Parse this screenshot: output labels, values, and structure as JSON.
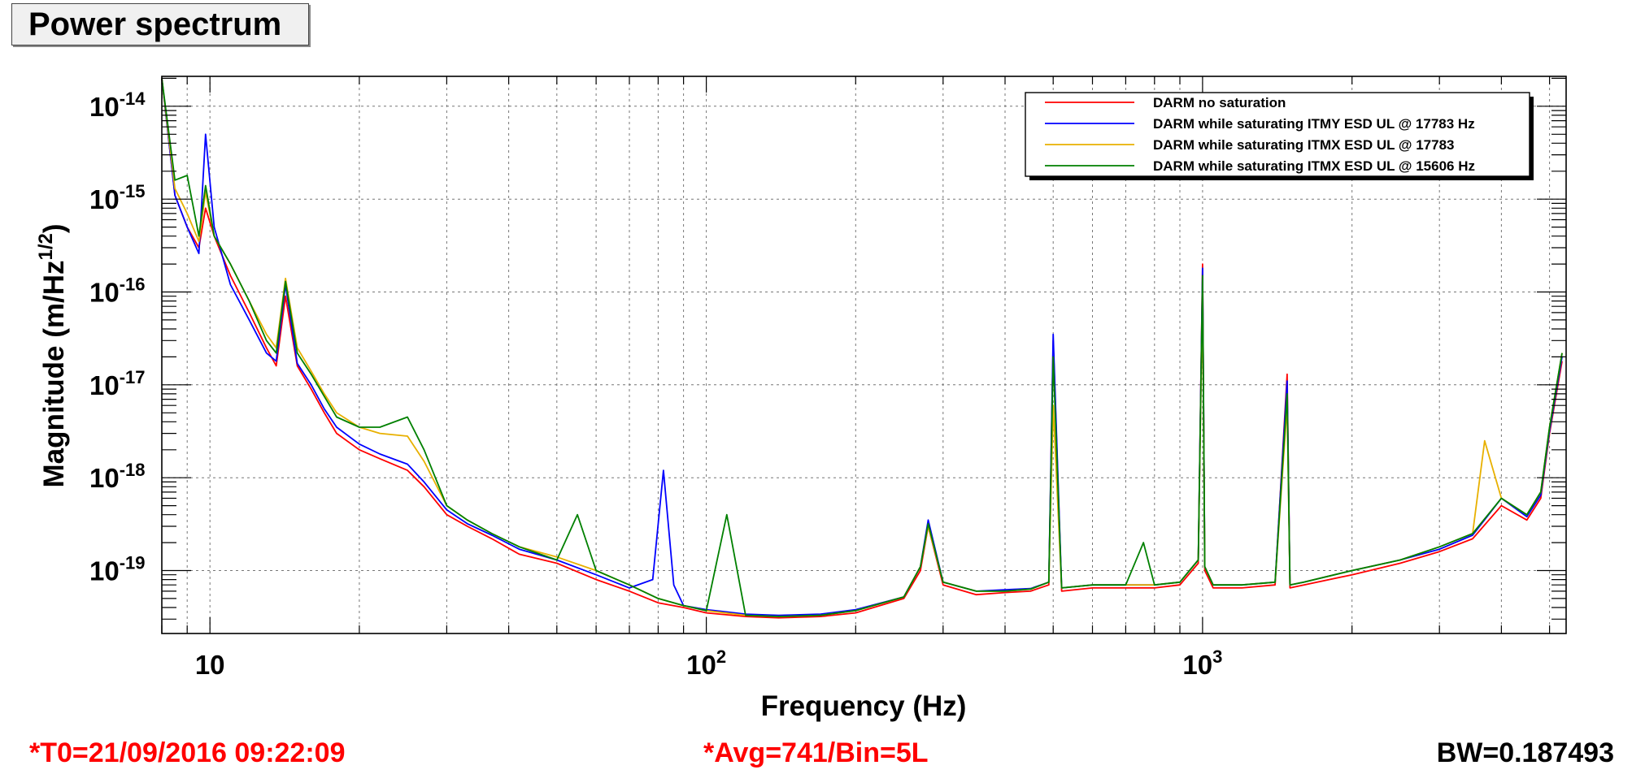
{
  "title": "Power spectrum",
  "footer": {
    "t0": "*T0=21/09/2016 09:22:09",
    "avg": "*Avg=741/Bin=5L",
    "bw": "BW=0.187493",
    "star_color": "#ff0000"
  },
  "chart_data": {
    "type": "line",
    "title": "Power spectrum",
    "xlabel": "Frequency (Hz)",
    "ylabel_main": "Magnitude (m/Hz",
    "ylabel_sup": "1/2",
    "ylabel_close": ")",
    "xscale": "log",
    "yscale": "log",
    "xlim": [
      8,
      5400
    ],
    "ylim": [
      2.1e-20,
      2.1e-14
    ],
    "grid": true,
    "legend_position": "top-right",
    "x_ticks": [
      {
        "value": 10,
        "base": "10",
        "exp": ""
      },
      {
        "value": 100,
        "base": "10",
        "exp": "2"
      },
      {
        "value": 1000,
        "base": "10",
        "exp": "3"
      }
    ],
    "y_ticks": [
      {
        "value": 1e-14,
        "base": "10",
        "exp": "-14"
      },
      {
        "value": 1e-15,
        "base": "10",
        "exp": "-15"
      },
      {
        "value": 1e-16,
        "base": "10",
        "exp": "-16"
      },
      {
        "value": 1e-17,
        "base": "10",
        "exp": "-17"
      },
      {
        "value": 1e-18,
        "base": "10",
        "exp": "-18"
      },
      {
        "value": 1e-19,
        "base": "10",
        "exp": "-19"
      }
    ],
    "series": [
      {
        "name": "DARM no saturation",
        "color": "#ff0000",
        "x": [
          8,
          8.5,
          9,
          9.5,
          9.8,
          10.2,
          11,
          12,
          13,
          13.6,
          14.2,
          15,
          16,
          17,
          18,
          20,
          22,
          25,
          27,
          30,
          33,
          37,
          42,
          50,
          60,
          70,
          80,
          90,
          100,
          120,
          140,
          170,
          200,
          250,
          270,
          280,
          300,
          350,
          400,
          450,
          490,
          500,
          520,
          600,
          700,
          800,
          900,
          980,
          1000,
          1010,
          1050,
          1100,
          1200,
          1400,
          1480,
          1500,
          1600,
          2000,
          2500,
          3000,
          3500,
          4000,
          4500,
          4800,
          5000,
          5300
        ],
        "y": [
          2e-14,
          1.1e-15,
          5e-16,
          3e-16,
          8e-16,
          4e-16,
          1.5e-16,
          6e-17,
          2.5e-17,
          1.6e-17,
          9e-17,
          1.6e-17,
          9e-18,
          5e-18,
          3e-18,
          2e-18,
          1.6e-18,
          1.2e-18,
          8e-19,
          4e-19,
          3e-19,
          2.2e-19,
          1.5e-19,
          1.2e-19,
          8e-20,
          6e-20,
          4.5e-20,
          4e-20,
          3.5e-20,
          3.2e-20,
          3.1e-20,
          3.2e-20,
          3.5e-20,
          5e-20,
          1e-19,
          3e-19,
          7e-20,
          5.5e-20,
          5.8e-20,
          6e-20,
          7e-20,
          3e-17,
          6e-20,
          6.5e-20,
          6.5e-20,
          6.5e-20,
          7e-20,
          1.2e-19,
          2e-16,
          1e-19,
          6.5e-20,
          6.5e-20,
          6.5e-20,
          7e-20,
          1.3e-17,
          6.5e-20,
          7e-20,
          9e-20,
          1.2e-19,
          1.6e-19,
          2.2e-19,
          5e-19,
          3.5e-19,
          6e-19,
          3e-18,
          1.8e-17
        ]
      },
      {
        "name": "DARM while saturating ITMY ESD UL @ 17783 Hz",
        "color": "#0000ff",
        "x": [
          8,
          8.5,
          9,
          9.5,
          9.8,
          10.2,
          11,
          12,
          13,
          13.6,
          14.2,
          15,
          16,
          17,
          18,
          20,
          22,
          25,
          27,
          30,
          33,
          37,
          42,
          50,
          60,
          70,
          78,
          82,
          86,
          90,
          100,
          120,
          140,
          170,
          200,
          250,
          270,
          280,
          300,
          350,
          400,
          450,
          490,
          500,
          520,
          600,
          700,
          800,
          900,
          980,
          1000,
          1010,
          1050,
          1100,
          1200,
          1400,
          1480,
          1500,
          1600,
          2000,
          2500,
          3000,
          3500,
          4000,
          4500,
          4800,
          5000,
          5300
        ],
        "y": [
          2e-14,
          1.1e-15,
          5e-16,
          2.6e-16,
          5e-15,
          5e-16,
          1.2e-16,
          5e-17,
          2.2e-17,
          1.8e-17,
          1.2e-16,
          1.7e-17,
          1e-17,
          5.5e-18,
          3.5e-18,
          2.3e-18,
          1.8e-18,
          1.4e-18,
          9e-19,
          4.5e-19,
          3.2e-19,
          2.4e-19,
          1.7e-19,
          1.3e-19,
          9e-20,
          6.5e-20,
          8e-20,
          1.2e-18,
          7e-20,
          4.2e-20,
          3.8e-20,
          3.4e-20,
          3.3e-20,
          3.4e-20,
          3.8e-20,
          5.2e-20,
          1.1e-19,
          3.5e-19,
          7.5e-20,
          6e-20,
          6.2e-20,
          6.4e-20,
          7.5e-20,
          3.5e-17,
          6.5e-20,
          7e-20,
          7e-20,
          7e-20,
          7.5e-20,
          1.3e-19,
          1.8e-16,
          1.1e-19,
          7e-20,
          7e-20,
          7e-20,
          7.5e-20,
          1.1e-17,
          7e-20,
          7.5e-20,
          1e-19,
          1.3e-19,
          1.7e-19,
          2.4e-19,
          6e-19,
          3.8e-19,
          6.5e-19,
          3.2e-18,
          2e-17
        ]
      },
      {
        "name": "DARM while saturating ITMX ESD UL @ 17783",
        "color": "#e8b000",
        "x": [
          8,
          8.5,
          9,
          9.5,
          9.8,
          10.2,
          11,
          12,
          13,
          13.6,
          14.2,
          15,
          16,
          17,
          18,
          20,
          22,
          25,
          27,
          30,
          33,
          37,
          42,
          50,
          60,
          70,
          80,
          90,
          100,
          120,
          140,
          170,
          200,
          250,
          270,
          280,
          300,
          350,
          400,
          450,
          490,
          500,
          520,
          600,
          700,
          800,
          900,
          980,
          1000,
          1010,
          1050,
          1100,
          1200,
          1400,
          1480,
          1500,
          1600,
          2000,
          2500,
          3000,
          3500,
          3700,
          4000,
          4500,
          4800,
          5000,
          5300
        ],
        "y": [
          2e-14,
          1.3e-15,
          7e-16,
          3.5e-16,
          1.2e-15,
          4e-16,
          2e-16,
          8e-17,
          3.5e-17,
          2.5e-17,
          1.4e-16,
          2.5e-17,
          1.4e-17,
          8e-18,
          5e-18,
          3.5e-18,
          3e-18,
          2.8e-18,
          1.5e-18,
          5e-19,
          3.5e-19,
          2.5e-19,
          1.8e-19,
          1.4e-19,
          1e-19,
          7e-20,
          5e-20,
          4.2e-20,
          3.7e-20,
          3.3e-20,
          3.2e-20,
          3.3e-20,
          3.7e-20,
          5.2e-20,
          1.1e-19,
          3e-19,
          7.5e-20,
          6e-20,
          6e-20,
          6.3e-20,
          7.5e-20,
          6e-18,
          6.5e-20,
          7e-20,
          7e-20,
          7e-20,
          7.5e-20,
          1.3e-19,
          1e-16,
          1.1e-19,
          7e-20,
          7e-20,
          7e-20,
          7.5e-20,
          6e-18,
          7e-20,
          7.5e-20,
          1e-19,
          1.3e-19,
          1.8e-19,
          2.5e-19,
          2.5e-18,
          6e-19,
          4e-19,
          7e-19,
          3.5e-18,
          2.2e-17
        ]
      },
      {
        "name": "DARM while saturating ITMX ESD UL @ 15606 Hz",
        "color": "#008000",
        "x": [
          8,
          8.5,
          9,
          9.5,
          9.8,
          10.2,
          11,
          12,
          13,
          13.6,
          14.2,
          15,
          16,
          17,
          18,
          20,
          22,
          25,
          27,
          30,
          33,
          37,
          42,
          50,
          55,
          60,
          70,
          80,
          90,
          100,
          110,
          120,
          140,
          170,
          200,
          250,
          270,
          280,
          300,
          350,
          400,
          450,
          490,
          500,
          520,
          600,
          700,
          760,
          800,
          900,
          980,
          1000,
          1010,
          1050,
          1100,
          1200,
          1400,
          1480,
          1500,
          1600,
          2000,
          2500,
          3000,
          3500,
          4000,
          4500,
          4800,
          5000,
          5300
        ],
        "y": [
          2e-14,
          1.6e-15,
          1.8e-15,
          4e-16,
          1.4e-15,
          4e-16,
          2e-16,
          8e-17,
          3e-17,
          2.2e-17,
          1.3e-16,
          2.2e-17,
          1.3e-17,
          7.5e-18,
          4.5e-18,
          3.5e-18,
          3.5e-18,
          4.5e-18,
          2e-18,
          5e-19,
          3.5e-19,
          2.5e-19,
          1.8e-19,
          1.3e-19,
          4e-19,
          1e-19,
          7e-20,
          5e-20,
          4.2e-20,
          3.7e-20,
          4e-19,
          3.3e-20,
          3.2e-20,
          3.3e-20,
          3.7e-20,
          5.2e-20,
          1.1e-19,
          3.2e-19,
          7.5e-20,
          6e-20,
          6e-20,
          6.3e-20,
          7.5e-20,
          2e-17,
          6.5e-20,
          7e-20,
          7e-20,
          2e-19,
          7e-20,
          7.5e-20,
          1.3e-19,
          1.5e-16,
          1.1e-19,
          7e-20,
          7e-20,
          7e-20,
          7.5e-20,
          8e-18,
          7e-20,
          7.5e-20,
          1e-19,
          1.3e-19,
          1.8e-19,
          2.5e-19,
          6e-19,
          4e-19,
          7e-19,
          3.5e-18,
          2.2e-17
        ]
      }
    ]
  }
}
